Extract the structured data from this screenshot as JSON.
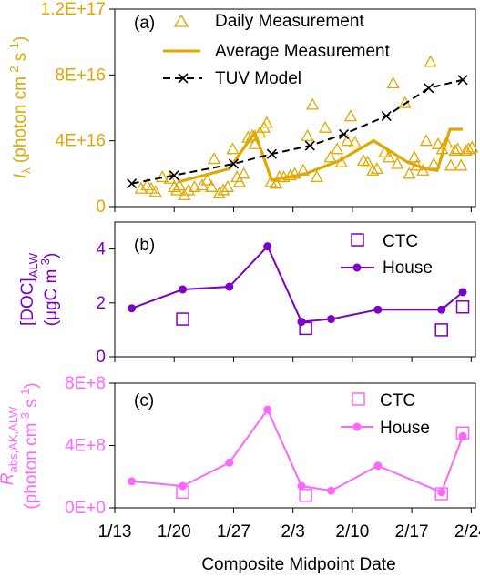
{
  "chart_data": [
    {
      "type": "line",
      "panel_label": "(a)",
      "ylabel_main": "I",
      "ylabel_sub": "λ",
      "ylabel_rest": " (photon cm",
      "ylabel_exp1": "-2",
      "ylabel_mid": " s",
      "ylabel_exp2": "-1",
      "ylabel_end": ")",
      "ylim": [
        0,
        1.2e+17
      ],
      "ytick_values": [
        0,
        4e+16,
        8e+16,
        1.2e+17
      ],
      "ytick_labels": [
        "0",
        "4E+16",
        "8E+16",
        "1.2E+17"
      ],
      "y_color": "#E0A800",
      "series": [
        {
          "name": "Daily Measurement",
          "marker": "triangle",
          "color": "#E0A800",
          "x": [
            16.1,
            16.8,
            17.3,
            17.8,
            18.6,
            19.5,
            20.0,
            20.3,
            20.6,
            21.2,
            21.7,
            22.4,
            23.3,
            23.9,
            24.4,
            24.7,
            25.3,
            25.8,
            26.3,
            26.9,
            27.4,
            27.7,
            28.2,
            28.7,
            29.2,
            29.5,
            30.1,
            30.6,
            30.9,
            31.4,
            32.0,
            32.4,
            32.9,
            33.7,
            34.2,
            35.2,
            35.7,
            36.3,
            36.8,
            37.8,
            38.4,
            39.2,
            39.7,
            40.4,
            40.8,
            41.3,
            42.3,
            42.8,
            43.4,
            43.9,
            44.8,
            45.3,
            45.8,
            46.3,
            47.2,
            47.7,
            48.3,
            48.6,
            49.3,
            49.7,
            50.2,
            50.6,
            51.1,
            51.6,
            52.1,
            52.6,
            53.1,
            53.4,
            53.8,
            54.4,
            54.7,
            55.1
          ],
          "y": [
            1.1e+16,
            1.3e+16,
            1.1e+16,
            9000000000000000.0,
            1.8e+16,
            1.7e+16,
            1.2e+16,
            1e+16,
            1.3e+16,
            7000000000000000.0,
            1e+16,
            1.2e+16,
            1.3e+16,
            1.6e+16,
            1.2e+16,
            2.9e+16,
            8000000000000000.0,
            1e+16,
            1.2e+16,
            3.5e+16,
            1.8e+16,
            1.5e+16,
            2e+16,
            4.2e+16,
            4.3e+16,
            3.8e+16,
            4.5e+16,
            4.8e+16,
            5.1e+16,
            1.5e+16,
            1.4e+16,
            1.8e+16,
            1.8e+16,
            1.9e+16,
            2e+16,
            2.2e+16,
            4.3e+16,
            6.2e+16,
            1.8e+16,
            4.8e+16,
            3e+16,
            3.5e+16,
            2.7e+16,
            4e+16,
            5.5e+16,
            3.9e+16,
            2.8e+16,
            2.7e+16,
            2.2e+16,
            2.3e+16,
            3.3e+16,
            3e+16,
            7.5e+16,
            2.6e+16,
            6.3e+16,
            2e+16,
            3e+16,
            2.5e+16,
            2.2e+16,
            4e+16,
            8.8e+16,
            2.6e+16,
            3.8e+16,
            3.5e+16,
            3.9e+16,
            2.5e+16,
            3.4e+16,
            3.5e+16,
            2.5e+16,
            3.4e+16,
            3.5e+16,
            3.6e+16
          ]
        },
        {
          "name": "Average Measurement",
          "marker": "none",
          "color": "#E0A800",
          "x": [
            20.5,
            26.5,
            29.5,
            31.5,
            35.5,
            39.5,
            43.5,
            47.5,
            49.5,
            51.0,
            52.5,
            54.0
          ],
          "y": [
            1.5e+16,
            2.3e+16,
            4.5e+16,
            1.6e+16,
            2e+16,
            2.8e+16,
            4e+16,
            2.7e+16,
            2.3e+16,
            2.2e+16,
            4.7e+16,
            4.7e+16
          ]
        },
        {
          "name": "TUV Model",
          "marker": "x",
          "color": "#000000",
          "x": [
            15,
            20,
            27,
            31.5,
            36,
            40,
            45,
            50,
            54
          ],
          "y": [
            1.4e+16,
            1.9e+16,
            2.6e+16,
            3.2e+16,
            3.7e+16,
            4.4e+16,
            5.5e+16,
            7.2e+16,
            7.7e+16
          ]
        }
      ]
    },
    {
      "type": "line",
      "panel_label": "(b)",
      "ylabel_line1_pre": "[DOC]",
      "ylabel_line1_sub": "ALW",
      "ylabel_line2_pre": "(μgC m",
      "ylabel_line2_exp": "-3",
      "ylabel_line2_end": ")",
      "ylim": [
        0,
        5
      ],
      "ytick_values": [
        0,
        2,
        4
      ],
      "ytick_labels": [
        "0",
        "2",
        "4"
      ],
      "y_color": "#7B00C8",
      "series": [
        {
          "name": "CTC",
          "marker": "square",
          "color": "#7B00C8",
          "x": [
            21,
            35.5,
            51.5,
            54
          ],
          "y": [
            1.4,
            1.05,
            1.0,
            1.85
          ]
        },
        {
          "name": "House",
          "marker": "circle",
          "color": "#7B00C8",
          "x": [
            15,
            21,
            26.5,
            31,
            35,
            38.5,
            44,
            51.5,
            54
          ],
          "y": [
            1.8,
            2.5,
            2.6,
            4.1,
            1.3,
            1.4,
            1.75,
            1.75,
            2.4
          ]
        }
      ]
    },
    {
      "type": "line",
      "panel_label": "(c)",
      "ylabel_line1_pre": "R",
      "ylabel_line1_sub": "abs,AK,ALW",
      "ylabel_line2_pre": "(photon cm",
      "ylabel_line2_exp": "-3",
      "ylabel_line2_mid": " s",
      "ylabel_line2_exp2": "-1",
      "ylabel_line2_end": ")",
      "ylim": [
        0,
        800000000.0
      ],
      "ytick_values": [
        0,
        400000000.0,
        800000000.0
      ],
      "ytick_labels": [
        "0E+0",
        "4E+8",
        "8E+8"
      ],
      "y_color": "#FF66FF",
      "series": [
        {
          "name": "CTC",
          "marker": "square",
          "color": "#FF66FF",
          "x": [
            21,
            35.5,
            51.5,
            54
          ],
          "y": [
            100000000.0,
            80000000.0,
            90000000.0,
            480000000.0
          ]
        },
        {
          "name": "House",
          "marker": "circle",
          "color": "#FF66FF",
          "x": [
            15,
            21,
            26.5,
            31,
            35,
            38.5,
            44,
            51.5,
            54
          ],
          "y": [
            170000000.0,
            140000000.0,
            290000000.0,
            630000000.0,
            140000000.0,
            110000000.0,
            270000000.0,
            100000000.0,
            460000000.0
          ]
        }
      ]
    }
  ],
  "x_axis": {
    "xlabel": "Composite Midpoint Date",
    "xlim": [
      13,
      55.5
    ],
    "tick_values": [
      13,
      20,
      27,
      34,
      41,
      48,
      55
    ],
    "tick_labels": [
      "1/13",
      "1/20",
      "1/27",
      "2/3",
      "2/10",
      "2/17",
      "2/24"
    ]
  }
}
